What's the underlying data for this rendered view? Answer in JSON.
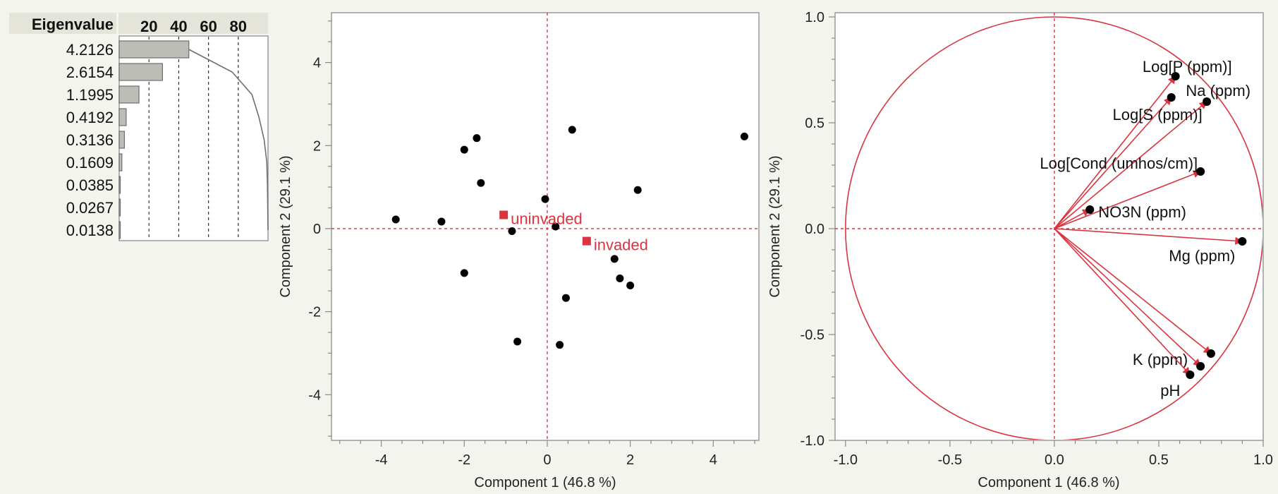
{
  "colors": {
    "background": "#f4f4ef",
    "plot_background": "#ffffff",
    "axis": "#9a9a9a",
    "accent_red": "#d9343f",
    "bar_fill": "#bdbdb8",
    "bar_stroke": "#6e6e6e",
    "header_fill": "#e4e4da",
    "points": "#000000"
  },
  "chart_data": [
    {
      "type": "bar",
      "id": "eigenvalue-table",
      "header_label": "Eigenvalue",
      "axis_ticks": [
        20,
        40,
        60,
        80
      ],
      "xlim": [
        0,
        100
      ],
      "eigenvalues": [
        "4.2126",
        "2.6154",
        "1.1995",
        "0.4192",
        "0.3136",
        "0.1609",
        "0.0385",
        "0.0267",
        "0.0138"
      ],
      "percent": [
        46.8,
        29.1,
        13.3,
        4.7,
        3.5,
        1.8,
        0.4,
        0.3,
        0.2
      ],
      "cumulative_percent": [
        46.8,
        75.9,
        89.2,
        93.9,
        97.4,
        99.2,
        99.6,
        99.8,
        100.0
      ]
    },
    {
      "type": "scatter",
      "id": "score-plot",
      "xlabel": "Component 1  (46.8 %)",
      "ylabel": "Component 2  (29.1 %)",
      "xlim": [
        -5.2,
        5.1
      ],
      "ylim": [
        -5.1,
        5.2
      ],
      "xticks": [
        -4,
        -2,
        0,
        2,
        4
      ],
      "yticks": [
        -4,
        -2,
        0,
        2,
        4
      ],
      "points": [
        {
          "x": -3.65,
          "y": 0.22
        },
        {
          "x": -2.55,
          "y": 0.17
        },
        {
          "x": -2.0,
          "y": 1.9
        },
        {
          "x": -1.7,
          "y": 2.18
        },
        {
          "x": -1.6,
          "y": 1.1
        },
        {
          "x": -2.0,
          "y": -1.07
        },
        {
          "x": -0.85,
          "y": -0.06
        },
        {
          "x": -0.05,
          "y": 0.71
        },
        {
          "x": 0.2,
          "y": 0.05
        },
        {
          "x": 0.6,
          "y": 2.38
        },
        {
          "x": 2.18,
          "y": 0.93
        },
        {
          "x": 4.75,
          "y": 2.22
        },
        {
          "x": 1.62,
          "y": -0.73
        },
        {
          "x": 1.75,
          "y": -1.2
        },
        {
          "x": 2.0,
          "y": -1.37
        },
        {
          "x": 0.45,
          "y": -1.67
        },
        {
          "x": -0.72,
          "y": -2.72
        },
        {
          "x": 0.3,
          "y": -2.8
        }
      ],
      "groups": [
        {
          "label": "uninvaded",
          "x": -1.05,
          "y": 0.33
        },
        {
          "label": "invaded",
          "x": 0.95,
          "y": -0.3
        }
      ]
    },
    {
      "type": "scatter",
      "id": "loading-plot",
      "xlabel": "Component 1  (46.8 %)",
      "ylabel": "Component 2  (29.1 %)",
      "xlim": [
        -1.05,
        1.0
      ],
      "ylim": [
        -1.0,
        1.02
      ],
      "xticks": [
        "-1.0",
        "-0.5",
        "0.0",
        "0.5",
        "1.0"
      ],
      "yticks": [
        "1.0",
        "0.5",
        "0.0",
        "-0.5",
        "-1.0"
      ],
      "loadings": [
        {
          "label": "Log[P (ppm)]",
          "x": 0.58,
          "y": 0.72
        },
        {
          "label": "Na (ppm)",
          "x": 0.73,
          "y": 0.6
        },
        {
          "label": "Log[S (ppm)]",
          "x": 0.56,
          "y": 0.62
        },
        {
          "label": "Log[Cond (umhos/cm)]",
          "x": 0.7,
          "y": 0.27
        },
        {
          "label": "NO3N (ppm)",
          "x": 0.17,
          "y": 0.09
        },
        {
          "label": "Mg (ppm)",
          "x": 0.9,
          "y": -0.06
        },
        {
          "label": "K (ppm)",
          "x": 0.7,
          "y": -0.65
        },
        {
          "label": "pH",
          "x": 0.65,
          "y": -0.69
        },
        {
          "label": "",
          "x": 0.75,
          "y": -0.59
        }
      ]
    }
  ]
}
